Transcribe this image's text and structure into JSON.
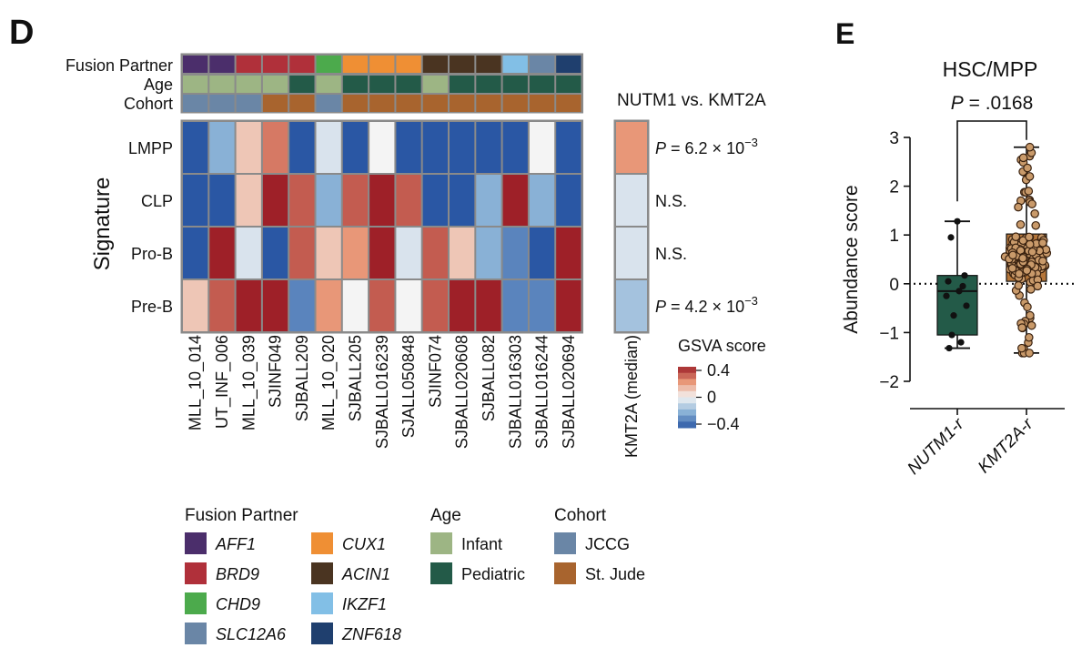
{
  "panel_d": {
    "label": "D",
    "annotation_labels": [
      "Fusion Partner",
      "Age",
      "Cohort"
    ],
    "signature_axis_label": "Signature",
    "comparison_title": "NUTM1 vs. KMT2A",
    "colorbar_title": "GSVA score",
    "colorbar_ticks": [
      "0.4",
      "0",
      "−0.4"
    ],
    "median_column_label": "KMT2A (median)",
    "pvalues": [
      {
        "prefix": "P",
        "text": " = 6.2 × 10",
        "exp": "−3"
      },
      {
        "prefix": "",
        "text": "N.S.",
        "exp": ""
      },
      {
        "prefix": "",
        "text": "N.S.",
        "exp": ""
      },
      {
        "prefix": "P",
        "text": " = 4.2 × 10",
        "exp": "−3"
      }
    ],
    "legend": {
      "fusion_title": "Fusion Partner",
      "fusion_items": [
        {
          "label": "AFF1",
          "color": "#4b2e6b"
        },
        {
          "label": "BRD9",
          "color": "#b0303a"
        },
        {
          "label": "CHD9",
          "color": "#4caa4c"
        },
        {
          "label": "SLC12A6",
          "color": "#6a86a6"
        },
        {
          "label": "CUX1",
          "color": "#ef8f34"
        },
        {
          "label": "ACIN1",
          "color": "#4a3421"
        },
        {
          "label": "IKZF1",
          "color": "#82bfe6"
        },
        {
          "label": "ZNF618",
          "color": "#1f3f6e"
        }
      ],
      "age_title": "Age",
      "age_items": [
        {
          "label": "Infant",
          "color": "#9db584"
        },
        {
          "label": "Pediatric",
          "color": "#235a48"
        }
      ],
      "cohort_title": "Cohort",
      "cohort_items": [
        {
          "label": "JCCG",
          "color": "#6a86a6"
        },
        {
          "label": "St. Jude",
          "color": "#a8642e"
        }
      ]
    }
  },
  "chart_data": [
    {
      "type": "heatmap",
      "title": "",
      "samples": [
        "MLL_10_014",
        "UT_INF_006",
        "MLL_10_039",
        "SJINF049",
        "SJBALL209",
        "MLL_10_020",
        "SJBALL205",
        "SJBALL016239",
        "SJALL050848",
        "SJINF074",
        "SJBALL020608",
        "SJBALL082",
        "SJBALL016303",
        "SJBALL016244",
        "SJBALL020694"
      ],
      "signatures": [
        "LMPP",
        "CLP",
        "Pro-B",
        "Pre-B"
      ],
      "fusion_partner": [
        "AFF1",
        "AFF1",
        "BRD9",
        "BRD9",
        "BRD9",
        "CHD9",
        "CUX1",
        "CUX1",
        "CUX1",
        "ACIN1",
        "ACIN1",
        "ACIN1",
        "IKZF1",
        "SLC12A6",
        "ZNF618"
      ],
      "age": [
        "Infant",
        "Infant",
        "Infant",
        "Infant",
        "Pediatric",
        "Infant",
        "Pediatric",
        "Pediatric",
        "Pediatric",
        "Infant",
        "Pediatric",
        "Pediatric",
        "Pediatric",
        "Pediatric",
        "Pediatric"
      ],
      "cohort": [
        "JCCG",
        "JCCG",
        "JCCG",
        "St. Jude",
        "St. Jude",
        "JCCG",
        "St. Jude",
        "St. Jude",
        "St. Jude",
        "St. Jude",
        "St. Jude",
        "St. Jude",
        "St. Jude",
        "St. Jude",
        "St. Jude"
      ],
      "values": [
        [
          -0.4,
          -0.2,
          0.1,
          0.25,
          -0.4,
          -0.05,
          -0.4,
          0.0,
          -0.4,
          -0.4,
          -0.4,
          -0.4,
          -0.4,
          0.0,
          -0.4
        ],
        [
          -0.4,
          -0.4,
          0.1,
          0.4,
          0.3,
          -0.2,
          0.3,
          0.4,
          0.3,
          -0.4,
          -0.4,
          -0.2,
          0.4,
          -0.2,
          -0.4
        ],
        [
          -0.4,
          0.4,
          -0.05,
          -0.4,
          0.3,
          0.1,
          0.2,
          0.4,
          -0.05,
          0.3,
          0.1,
          -0.2,
          -0.3,
          -0.4,
          0.4
        ],
        [
          0.1,
          0.3,
          0.4,
          0.4,
          -0.3,
          0.2,
          0.0,
          0.3,
          0.0,
          0.3,
          0.4,
          0.4,
          -0.3,
          -0.3,
          0.4
        ]
      ],
      "kmt2a_median": [
        0.2,
        -0.05,
        -0.05,
        -0.15
      ],
      "colorbar_range": [
        -0.4,
        0.4
      ]
    },
    {
      "type": "box",
      "title": "HSC/MPP",
      "panel_label": "E",
      "ylabel": "Abundance score",
      "ylim": [
        -2,
        3
      ],
      "yticks": [
        3,
        2,
        1,
        0,
        -1,
        -2
      ],
      "ytick_labels": [
        "3",
        "2",
        "1",
        "0",
        "−1",
        "−2"
      ],
      "categories": [
        "NUTM1-r",
        "KMT2A-r"
      ],
      "colors": [
        "#235a48",
        "#b5763a"
      ],
      "stats": [
        {
          "whisker_low": -1.32,
          "q1": -1.05,
          "median": -0.15,
          "q3": 0.17,
          "whisker_high": 1.28
        },
        {
          "whisker_low": -1.42,
          "q1": 0.05,
          "median": 0.58,
          "q3": 1.02,
          "whisker_high": 2.8
        }
      ],
      "points_nutm1": [
        1.28,
        0.95,
        0.17,
        0.05,
        -0.05,
        -0.15,
        -0.25,
        -0.45,
        -0.65,
        -1.05,
        -1.2,
        -1.32
      ],
      "pvalue_prefix": "P",
      "pvalue_text": " = .0168"
    }
  ]
}
